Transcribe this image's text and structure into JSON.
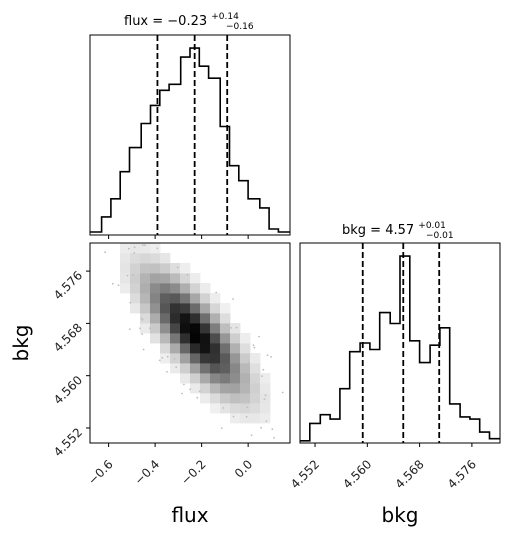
{
  "chart_data": [
    {
      "type": "bar",
      "panel": "flux histogram",
      "title_main": "flux = −0.23",
      "title_sup": "+0.14",
      "title_sub": "−0.16",
      "xlim": [
        -0.68,
        0.18
      ],
      "quantiles": [
        -0.39,
        -0.23,
        -0.09
      ],
      "bin_edges": [
        -0.68,
        -0.63,
        -0.59,
        -0.55,
        -0.51,
        -0.46,
        -0.42,
        -0.38,
        -0.34,
        -0.29,
        -0.25,
        -0.21,
        -0.17,
        -0.12,
        -0.08,
        -0.04,
        0.0,
        0.05,
        0.09,
        0.13,
        0.18
      ],
      "counts": [
        1,
        6,
        12,
        21,
        29,
        37,
        43,
        48,
        50,
        59,
        62,
        56,
        52,
        36,
        23,
        18,
        12,
        9,
        2,
        1
      ]
    },
    {
      "type": "heatmap",
      "panel": "flux vs bkg 2d histogram",
      "xlabel": "flux",
      "ylabel": "bkg",
      "xlim": [
        -0.68,
        0.18
      ],
      "ylim": [
        4.5497,
        4.5803
      ],
      "xticks": [
        "−0.6",
        "−0.4",
        "−0.2",
        "0.0"
      ],
      "xtick_values": [
        -0.6,
        -0.4,
        -0.2,
        0.0
      ],
      "yticks": [
        "4.552",
        "4.560",
        "4.568",
        "4.576"
      ],
      "ytick_values": [
        4.552,
        4.56,
        4.568,
        4.576
      ],
      "density_center": [
        -0.23,
        4.5665
      ],
      "density_sd": [
        0.13,
        0.0055
      ],
      "correlation": -0.78
    },
    {
      "type": "bar",
      "panel": "bkg histogram",
      "title_main": "bkg = 4.57",
      "title_sup": "+0.01",
      "title_sub": "−0.01",
      "xlabel": "bkg",
      "xlim": [
        4.5497,
        4.5803
      ],
      "xticks": [
        "4.552",
        "4.560",
        "4.568",
        "4.576"
      ],
      "xtick_values": [
        4.552,
        4.56,
        4.568,
        4.576
      ],
      "quantiles": [
        4.5593,
        4.5655,
        4.571
      ],
      "bin_edges": [
        4.5497,
        4.5512,
        4.5528,
        4.5543,
        4.5558,
        4.5573,
        4.5589,
        4.5604,
        4.5619,
        4.5635,
        4.565,
        4.5665,
        4.568,
        4.5696,
        4.5711,
        4.5726,
        4.5742,
        4.5757,
        4.5772,
        4.5787,
        4.5803
      ],
      "counts": [
        1,
        9,
        13,
        11,
        25,
        42,
        46,
        43,
        60,
        55,
        86,
        47,
        37,
        45,
        53,
        18,
        12,
        11,
        5,
        2
      ]
    }
  ]
}
